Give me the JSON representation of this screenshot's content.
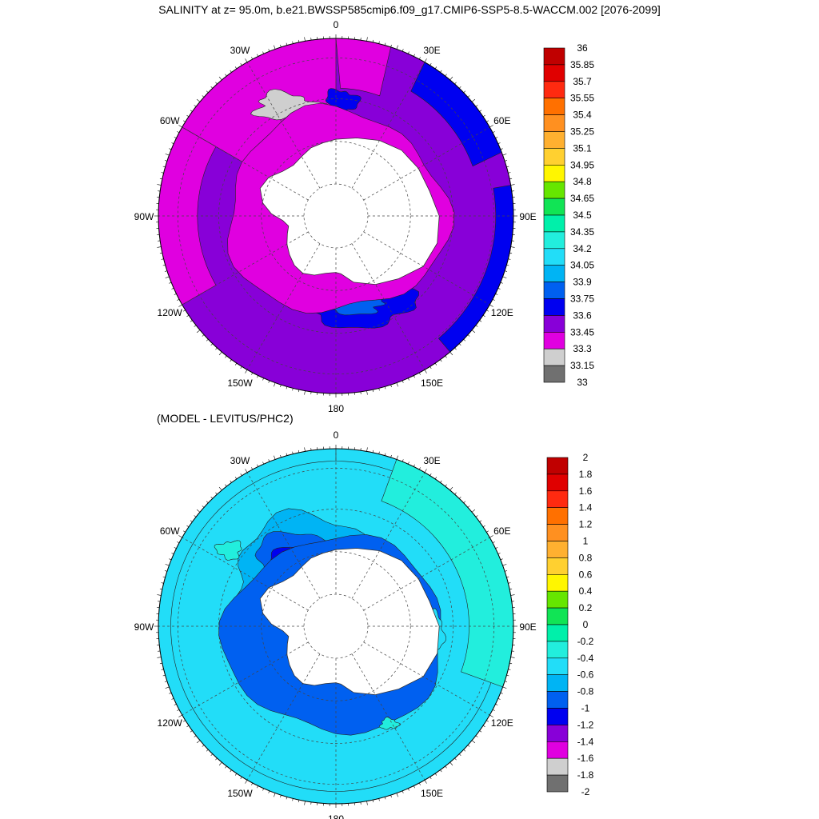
{
  "main_title": "SALINITY at z=  95.0m, b.e21.BWSSP585cmip6.f09_g17.CMIP6-SSP5-8.5-WACCM.002 [2076-2099]",
  "sub_title": "(MODEL - LEVITUS/PHC2)",
  "longitude_labels": [
    "0",
    "30E",
    "60E",
    "90E",
    "120E",
    "150E",
    "180",
    "150W",
    "120W",
    "90W",
    "60W",
    "30W"
  ],
  "palette": [
    "#707070",
    "#cfcfcf",
    "#e000e0",
    "#8800d8",
    "#0000f0",
    "#0060f0",
    "#00b4f4",
    "#22ddf8",
    "#22eedd",
    "#00f0aa",
    "#11e455",
    "#66e600",
    "#fff600",
    "#ffd030",
    "#ffb030",
    "#ff9020",
    "#ff7000",
    "#ff2a10",
    "#e00000",
    "#c00000"
  ],
  "maps": [
    {
      "name": "salinity",
      "field_label": "SALINITY",
      "depth": "95.0m",
      "period": "2076-2099",
      "colorbar_labels": [
        "36",
        "35.85",
        "35.7",
        "35.55",
        "35.4",
        "35.25",
        "35.1",
        "34.95",
        "34.8",
        "34.65",
        "34.5",
        "34.35",
        "34.2",
        "34.05",
        "33.9",
        "33.75",
        "33.6",
        "33.45",
        "33.3",
        "33.15",
        "33"
      ]
    },
    {
      "name": "difference",
      "field_label": "MODEL - LEVITUS/PHC2",
      "colorbar_labels": [
        "2",
        "1.8",
        "1.6",
        "1.4",
        "1.2",
        "1",
        "0.8",
        "0.6",
        "0.4",
        "0.2",
        "0",
        "-0.2",
        "-0.4",
        "-0.6",
        "-0.8",
        "-1",
        "-1.2",
        "-1.4",
        "-1.6",
        "-1.8",
        "-2"
      ]
    }
  ]
}
